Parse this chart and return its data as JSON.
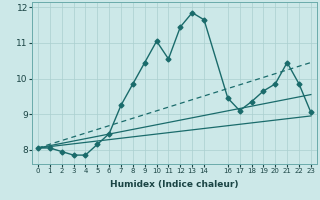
{
  "xlabel": "Humidex (Indice chaleur)",
  "bg_color": "#cce8e8",
  "line_color": "#1a6b6b",
  "grid_color": "#aacfcf",
  "xmin": -0.5,
  "xmax": 23.5,
  "ymin": 7.6,
  "ymax": 12.15,
  "yticks": [
    8,
    9,
    10,
    11,
    12
  ],
  "xticks": [
    0,
    1,
    2,
    3,
    4,
    5,
    6,
    7,
    8,
    9,
    10,
    11,
    12,
    13,
    14,
    16,
    17,
    18,
    19,
    20,
    21,
    22,
    23
  ],
  "series": [
    {
      "x": [
        0,
        1,
        2,
        3,
        4,
        5,
        6,
        7,
        8,
        9,
        10,
        11,
        12,
        13,
        14,
        16,
        17,
        18,
        19,
        20,
        21,
        22,
        23
      ],
      "y": [
        8.05,
        8.05,
        7.95,
        7.85,
        7.85,
        8.15,
        8.45,
        9.25,
        9.85,
        10.45,
        11.05,
        10.55,
        11.45,
        11.85,
        11.65,
        9.45,
        9.1,
        9.35,
        9.65,
        9.85,
        10.45,
        9.85,
        9.05
      ],
      "marker": "D",
      "markersize": 2.5,
      "linewidth": 1.0,
      "linestyle": "-",
      "dashes": null
    },
    {
      "x": [
        0,
        23
      ],
      "y": [
        8.05,
        9.55
      ],
      "marker": null,
      "markersize": 0,
      "linewidth": 0.9,
      "linestyle": "-",
      "dashes": null
    },
    {
      "x": [
        0,
        23
      ],
      "y": [
        8.05,
        8.95
      ],
      "marker": null,
      "markersize": 0,
      "linewidth": 0.9,
      "linestyle": "-",
      "dashes": null
    },
    {
      "x": [
        0,
        23
      ],
      "y": [
        8.05,
        10.45
      ],
      "marker": null,
      "markersize": 0,
      "linewidth": 0.9,
      "linestyle": "--",
      "dashes": [
        4,
        3
      ]
    }
  ]
}
